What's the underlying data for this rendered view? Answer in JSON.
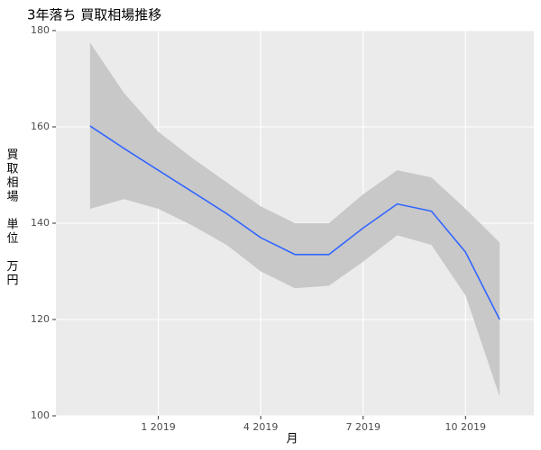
{
  "chart_data": {
    "type": "line",
    "title": "3年落ち 買取相場推移",
    "x_label": "月",
    "y_label": "買取相場 単位 万円",
    "x": [
      "2018-11",
      "2018-12",
      "2019-01",
      "2019-02",
      "2019-03",
      "2019-04",
      "2019-05",
      "2019-06",
      "2019-07",
      "2019-08",
      "2019-09",
      "2019-10",
      "2019-11"
    ],
    "series": [
      {
        "color": "#3366ff",
        "values": [
          160.2,
          155.5,
          151,
          146.5,
          142,
          137,
          133.5,
          133.5,
          139,
          144,
          142.5,
          134,
          120
        ]
      }
    ],
    "band": {
      "color": "#c8c8c8",
      "lower": [
        143,
        145,
        143,
        139.5,
        135.5,
        130,
        126.5,
        127,
        132,
        137.5,
        135.5,
        125,
        104
      ],
      "upper": [
        177.5,
        167,
        159,
        153.5,
        148.5,
        143.5,
        140,
        140,
        146,
        151,
        149.5,
        143,
        136
      ]
    },
    "xlim": [
      "2018-10",
      "2019-12"
    ],
    "xticks": [
      {
        "value": "2019-01",
        "label": "1 2019"
      },
      {
        "value": "2019-04",
        "label": "4 2019"
      },
      {
        "value": "2019-07",
        "label": "7 2019"
      },
      {
        "value": "2019-10",
        "label": "10 2019"
      }
    ],
    "ylim": [
      100,
      180
    ],
    "yticks": [
      100,
      120,
      140,
      160,
      180
    ],
    "grid": true
  }
}
